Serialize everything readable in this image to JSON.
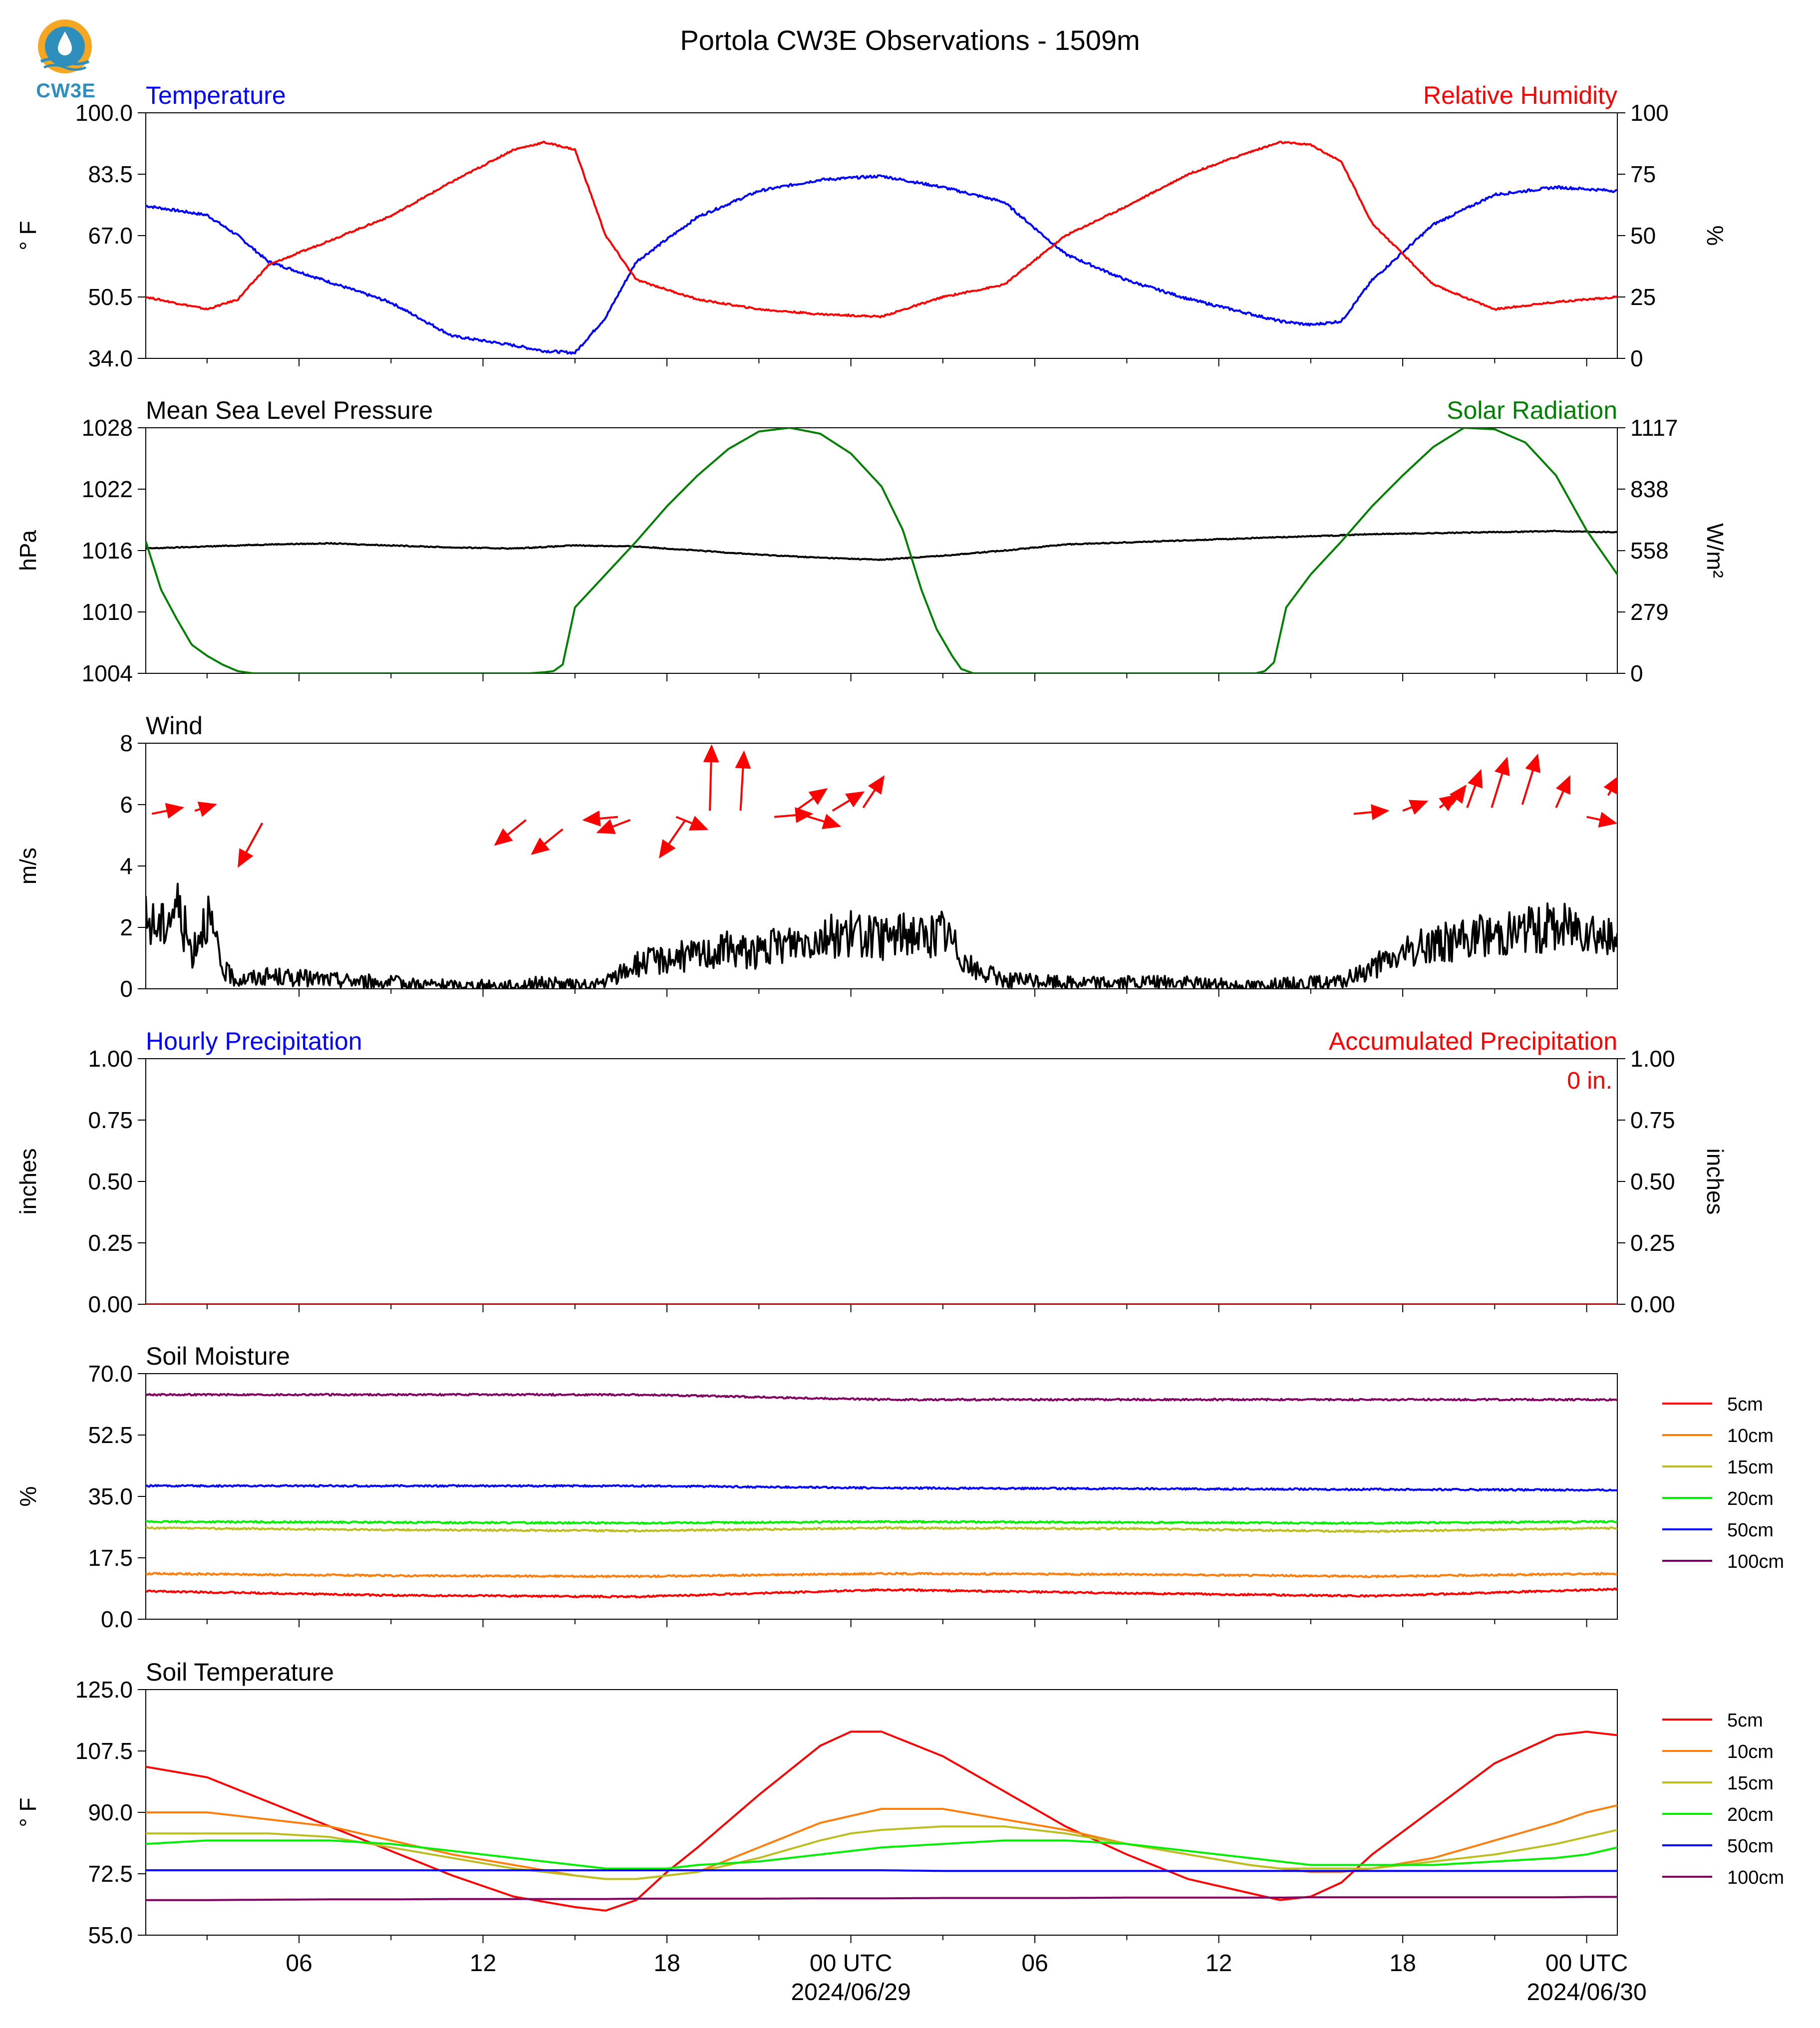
{
  "figure": {
    "title": "Portola CW3E Observations - 1509m",
    "logo_text": "CW3E",
    "time_ticks": [
      "06",
      "12",
      "18",
      "00 UTC",
      "06",
      "12",
      "18",
      "00 UTC"
    ],
    "date_labels": [
      "2024/06/29",
      "2024/06/30"
    ]
  },
  "colors": {
    "blue": "#0000ff",
    "red": "#ff0000",
    "black": "#000000",
    "green": "#007f00",
    "logo": "#2e8fbd",
    "logo_orange": "#f5a623"
  },
  "chart_data": [
    {
      "id": "temp_rh",
      "type": "line",
      "title_left": "Temperature",
      "title_right": "Relative Humidity",
      "ylabel_left": "° F",
      "ylabel_right": "%",
      "ylim_left": [
        34.0,
        100.0
      ],
      "yticks_left": [
        "34.0",
        "50.5",
        "67.0",
        "83.5",
        "100.0"
      ],
      "ylim_right": [
        0,
        100
      ],
      "yticks_right": [
        "0",
        "25",
        "50",
        "75",
        "100"
      ],
      "x_hours": [
        0,
        2,
        3,
        4,
        6,
        8,
        10,
        12,
        13,
        14,
        15,
        16,
        18,
        20,
        22,
        24,
        26,
        28,
        30,
        32,
        34,
        36,
        37,
        38,
        39,
        40,
        42,
        44,
        46,
        48
      ],
      "series": [
        {
          "name": "Temperature",
          "axis": "left",
          "color": "#0000ff",
          "values": [
            75,
            72.5,
            67,
            60,
            54.5,
            49,
            40,
            37.5,
            36,
            35.5,
            45,
            60,
            72,
            79,
            82,
            83,
            80,
            76,
            62,
            55,
            50,
            46,
            44,
            43,
            44,
            55,
            70,
            78,
            80,
            79
          ]
        },
        {
          "name": "Relative Humidity",
          "axis": "right",
          "color": "#ff0000",
          "values": [
            25,
            20,
            24,
            38,
            48,
            58,
            72,
            85,
            88,
            85,
            50,
            32,
            24,
            20,
            18,
            17,
            25,
            30,
            50,
            62,
            75,
            84,
            88,
            87,
            80,
            55,
            30,
            20,
            23,
            25
          ]
        }
      ]
    },
    {
      "id": "press_solar",
      "type": "line",
      "title_left": "Mean Sea Level Pressure",
      "title_right": "Solar Radiation",
      "ylabel_left": "hPa",
      "ylabel_right": "W/m²",
      "ylim_left": [
        1004,
        1028
      ],
      "yticks_left": [
        "1004",
        "1010",
        "1016",
        "1022",
        "1028"
      ],
      "ylim_right": [
        0,
        1117
      ],
      "yticks_right": [
        "0",
        "279",
        "558",
        "838",
        "1117"
      ],
      "x_hours": [
        0,
        2,
        4,
        6,
        8,
        10,
        12,
        14,
        16,
        18,
        20,
        22,
        24,
        26,
        28,
        30,
        32,
        34,
        36,
        38,
        40,
        42,
        44,
        46,
        48
      ],
      "series": [
        {
          "name": "Mean Sea Level Pressure",
          "axis": "left",
          "color": "#000000",
          "values": [
            1016.2,
            1016.4,
            1016.6,
            1016.7,
            1016.5,
            1016.3,
            1016.2,
            1016.5,
            1016.4,
            1016.0,
            1015.6,
            1015.3,
            1015.1,
            1015.5,
            1016.0,
            1016.6,
            1016.8,
            1017.0,
            1017.2,
            1017.4,
            1017.6,
            1017.7,
            1017.8,
            1017.9,
            1017.8
          ]
        },
        {
          "name": "Solar Radiation",
          "axis": "right",
          "color": "#007f00",
          "x_hours": [
            0,
            0.5,
            1,
            1.5,
            2,
            2.5,
            3,
            3.5,
            4,
            5,
            8,
            11,
            12.5,
            13,
            13.3,
            13.6,
            14,
            15,
            16,
            17,
            18,
            19,
            20,
            21,
            22,
            23,
            24,
            24.7,
            25.3,
            25.8,
            26.3,
            26.6,
            27,
            28,
            31,
            34,
            36.2,
            36.5,
            36.8,
            37.2,
            38,
            39,
            40,
            41,
            42,
            43,
            44,
            45,
            46,
            47,
            48
          ],
          "values": [
            600,
            380,
            250,
            130,
            80,
            40,
            10,
            0,
            0,
            0,
            0,
            0,
            0,
            5,
            10,
            40,
            300,
            450,
            600,
            760,
            900,
            1020,
            1100,
            1117,
            1090,
            1000,
            850,
            650,
            380,
            200,
            80,
            20,
            0,
            0,
            0,
            0,
            0,
            10,
            50,
            300,
            450,
            600,
            760,
            900,
            1030,
            1117,
            1110,
            1050,
            900,
            650,
            450
          ]
        }
      ]
    },
    {
      "id": "wind",
      "type": "line",
      "title_left": "Wind",
      "ylabel_left": "m/s",
      "ylim_left": [
        0,
        8
      ],
      "yticks_left": [
        "0",
        "2",
        "4",
        "6",
        "8"
      ],
      "x_hours": [
        0,
        0.5,
        1,
        1.5,
        2,
        2.5,
        3,
        4,
        6,
        8,
        10,
        12,
        13,
        14,
        14.5,
        15,
        16,
        17,
        18,
        19,
        20,
        21,
        22,
        23,
        24,
        25,
        25.5,
        26,
        27,
        28,
        30,
        32,
        34,
        36,
        38,
        39,
        40,
        41,
        42,
        43,
        44,
        45,
        46,
        47,
        48
      ],
      "series": [
        {
          "name": "Wind Speed",
          "color": "#000000",
          "values": [
            2.2,
            2.0,
            2.8,
            1.2,
            2.5,
            0.6,
            0.3,
            0.4,
            0.3,
            0.2,
            0.1,
            0.1,
            0.2,
            0.1,
            0.1,
            0.2,
            0.8,
            1.0,
            1.1,
            1.3,
            1.2,
            1.5,
            1.7,
            1.8,
            1.6,
            1.9,
            1.6,
            1.9,
            0.6,
            0.3,
            0.2,
            0.2,
            0.2,
            0.1,
            0.2,
            0.2,
            0.7,
            1.1,
            1.5,
            1.6,
            1.8,
            1.9,
            2.0,
            2.1,
            1.4
          ]
        }
      ],
      "wind_arrows": [
        {
          "t": 0.2,
          "y": 5.7,
          "dx": 1.8,
          "dy": 0.2
        },
        {
          "t": 1.6,
          "y": 5.8,
          "dx": 1.2,
          "dy": 0.2
        },
        {
          "t": 3.8,
          "y": 5.4,
          "dx": -1.4,
          "dy": -1.4
        },
        {
          "t": 12.4,
          "y": 5.5,
          "dx": -1.8,
          "dy": -0.8
        },
        {
          "t": 13.6,
          "y": 5.2,
          "dx": -1.8,
          "dy": -0.8
        },
        {
          "t": 15.4,
          "y": 5.6,
          "dx": -2.0,
          "dy": -0.1
        },
        {
          "t": 15.8,
          "y": 5.5,
          "dx": -1.9,
          "dy": -0.4
        },
        {
          "t": 17.3,
          "y": 5.6,
          "dx": 1.8,
          "dy": -0.4
        },
        {
          "t": 17.6,
          "y": 5.5,
          "dx": -1.5,
          "dy": -1.2
        },
        {
          "t": 18.4,
          "y": 5.8,
          "dx": 0.1,
          "dy": 2.1
        },
        {
          "t": 19.4,
          "y": 5.8,
          "dx": 0.2,
          "dy": 1.9
        },
        {
          "t": 20.5,
          "y": 5.6,
          "dx": 2.2,
          "dy": 0.1
        },
        {
          "t": 21.2,
          "y": 5.8,
          "dx": 1.8,
          "dy": 0.7
        },
        {
          "t": 21.3,
          "y": 5.7,
          "dx": 2.4,
          "dy": -0.4
        },
        {
          "t": 22.4,
          "y": 5.8,
          "dx": 1.8,
          "dy": 0.6
        },
        {
          "t": 23.4,
          "y": 5.9,
          "dx": 1.2,
          "dy": 1.0
        },
        {
          "t": 39.4,
          "y": 5.7,
          "dx": 2.0,
          "dy": 0.1
        },
        {
          "t": 41.0,
          "y": 5.8,
          "dx": 1.4,
          "dy": 0.3
        },
        {
          "t": 42.2,
          "y": 5.9,
          "dx": 1.0,
          "dy": 0.4
        },
        {
          "t": 42.6,
          "y": 6.0,
          "dx": 0.8,
          "dy": 0.6
        },
        {
          "t": 43.1,
          "y": 5.9,
          "dx": 0.8,
          "dy": 1.2
        },
        {
          "t": 43.9,
          "y": 5.9,
          "dx": 0.9,
          "dy": 1.6
        },
        {
          "t": 44.9,
          "y": 6.0,
          "dx": 0.9,
          "dy": 1.6
        },
        {
          "t": 46.0,
          "y": 5.9,
          "dx": 0.8,
          "dy": 1.0
        },
        {
          "t": 47.0,
          "y": 5.6,
          "dx": 1.7,
          "dy": -0.2
        },
        {
          "t": 47.7,
          "y": 6.3,
          "dx": 0.6,
          "dy": 0.6
        }
      ]
    },
    {
      "id": "precip",
      "type": "line",
      "title_left": "Hourly Precipitation",
      "title_right": "Accumulated Precipitation",
      "ylabel_left": "inches",
      "ylabel_right": "inches",
      "ylim_left": [
        0.0,
        1.0
      ],
      "yticks_left": [
        "0.00",
        "0.25",
        "0.50",
        "0.75",
        "1.00"
      ],
      "ylim_right": [
        0.0,
        1.0
      ],
      "yticks_right": [
        "0.00",
        "0.25",
        "0.50",
        "0.75",
        "1.00"
      ],
      "annotation": "0 in.",
      "x_hours": [
        0,
        48
      ],
      "series": [
        {
          "name": "Hourly Precipitation",
          "axis": "left",
          "color": "#0000ff",
          "values": [
            0,
            0
          ]
        },
        {
          "name": "Accumulated Precipitation",
          "axis": "right",
          "color": "#ff0000",
          "values": [
            0,
            0
          ]
        }
      ]
    },
    {
      "id": "soil_moisture",
      "type": "line",
      "title_left": "Soil Moisture",
      "ylabel_left": "%",
      "ylim_left": [
        0.0,
        70.0
      ],
      "yticks_left": [
        "0.0",
        "17.5",
        "35.0",
        "52.5",
        "70.0"
      ],
      "x_hours": [
        0,
        8,
        16,
        24,
        32,
        40,
        48
      ],
      "legend": "right",
      "series": [
        {
          "name": "5cm",
          "color": "#ff0000",
          "values": [
            8.0,
            6.8,
            6.4,
            8.4,
            7.4,
            6.6,
            8.6
          ]
        },
        {
          "name": "10cm",
          "color": "#ff7f0e",
          "values": [
            13.0,
            12.4,
            12.2,
            13.0,
            12.8,
            12.2,
            13.0
          ]
        },
        {
          "name": "15cm",
          "color": "#bcbd22",
          "values": [
            26.0,
            25.5,
            25.2,
            26.0,
            25.8,
            25.0,
            26.0
          ]
        },
        {
          "name": "20cm",
          "color": "#00ee00",
          "values": [
            27.8,
            27.6,
            27.4,
            27.8,
            27.6,
            27.4,
            27.8
          ]
        },
        {
          "name": "50cm",
          "color": "#0000ff",
          "values": [
            38.0,
            38.0,
            38.0,
            37.4,
            37.2,
            37.0,
            36.8
          ]
        },
        {
          "name": "100cm",
          "color": "#800060",
          "values": [
            64.0,
            64.0,
            64.0,
            62.6,
            62.6,
            62.6,
            62.6
          ]
        }
      ]
    },
    {
      "id": "soil_temp",
      "type": "line",
      "title_left": "Soil Temperature",
      "ylabel_left": "° F",
      "ylim_left": [
        55.0,
        125.0
      ],
      "yticks_left": [
        "55.0",
        "72.5",
        "90.0",
        "107.5",
        "125.0"
      ],
      "x_hours": [
        0,
        2,
        4,
        6,
        8,
        10,
        12,
        14,
        15,
        16,
        17,
        18,
        20,
        22,
        23,
        24,
        26,
        28,
        30,
        32,
        34,
        36,
        37,
        38,
        39,
        40,
        42,
        44,
        46,
        47,
        48
      ],
      "legend": "right",
      "series": [
        {
          "name": "5cm",
          "color": "#ff0000",
          "values": [
            103,
            100,
            93,
            86,
            79,
            72,
            66,
            63,
            62,
            65,
            73,
            80,
            95,
            109,
            113,
            113,
            106,
            96,
            86,
            78,
            71,
            67,
            65,
            66,
            70,
            78,
            91,
            104,
            112,
            113,
            112
          ]
        },
        {
          "name": "10cm",
          "color": "#ff7f0e",
          "values": [
            90,
            90,
            88,
            86,
            82,
            78,
            75,
            72,
            71,
            71,
            72,
            73,
            80,
            87,
            89,
            91,
            91,
            88,
            85,
            81,
            78,
            75,
            74,
            73,
            73,
            74,
            77,
            82,
            87,
            90,
            92
          ]
        },
        {
          "name": "15cm",
          "color": "#bcbd22",
          "values": [
            84,
            84,
            84,
            83,
            80,
            77,
            74,
            72,
            71,
            71,
            72,
            73,
            77,
            82,
            84,
            85,
            86,
            86,
            84,
            81,
            78,
            75,
            74,
            74,
            74,
            74,
            76,
            78,
            81,
            83,
            85
          ]
        },
        {
          "name": "20cm",
          "color": "#00ee00",
          "values": [
            81,
            82,
            82,
            82,
            81,
            79,
            77,
            75,
            74,
            74,
            74,
            75,
            76,
            78,
            79,
            80,
            81,
            82,
            82,
            81,
            79,
            77,
            76,
            75,
            75,
            75,
            75,
            76,
            77,
            78,
            80
          ]
        },
        {
          "name": "50cm",
          "color": "#0000ff",
          "values": [
            73.5,
            73.5,
            73.5,
            73.5,
            73.5,
            73.5,
            73.5,
            73.5,
            73.5,
            73.5,
            73.5,
            73.5,
            73.5,
            73.5,
            73.5,
            73.5,
            73.3,
            73.3,
            73.3,
            73.3,
            73.3,
            73.3,
            73.3,
            73.3,
            73.3,
            73.3,
            73.3,
            73.3,
            73.3,
            73.3,
            73.3
          ]
        },
        {
          "name": "100cm",
          "color": "#800060",
          "values": [
            65.0,
            65.0,
            65.1,
            65.2,
            65.2,
            65.3,
            65.3,
            65.3,
            65.3,
            65.4,
            65.4,
            65.4,
            65.4,
            65.5,
            65.5,
            65.5,
            65.6,
            65.6,
            65.6,
            65.7,
            65.7,
            65.7,
            65.7,
            65.8,
            65.8,
            65.8,
            65.8,
            65.8,
            65.8,
            65.9,
            65.9
          ]
        }
      ]
    }
  ]
}
